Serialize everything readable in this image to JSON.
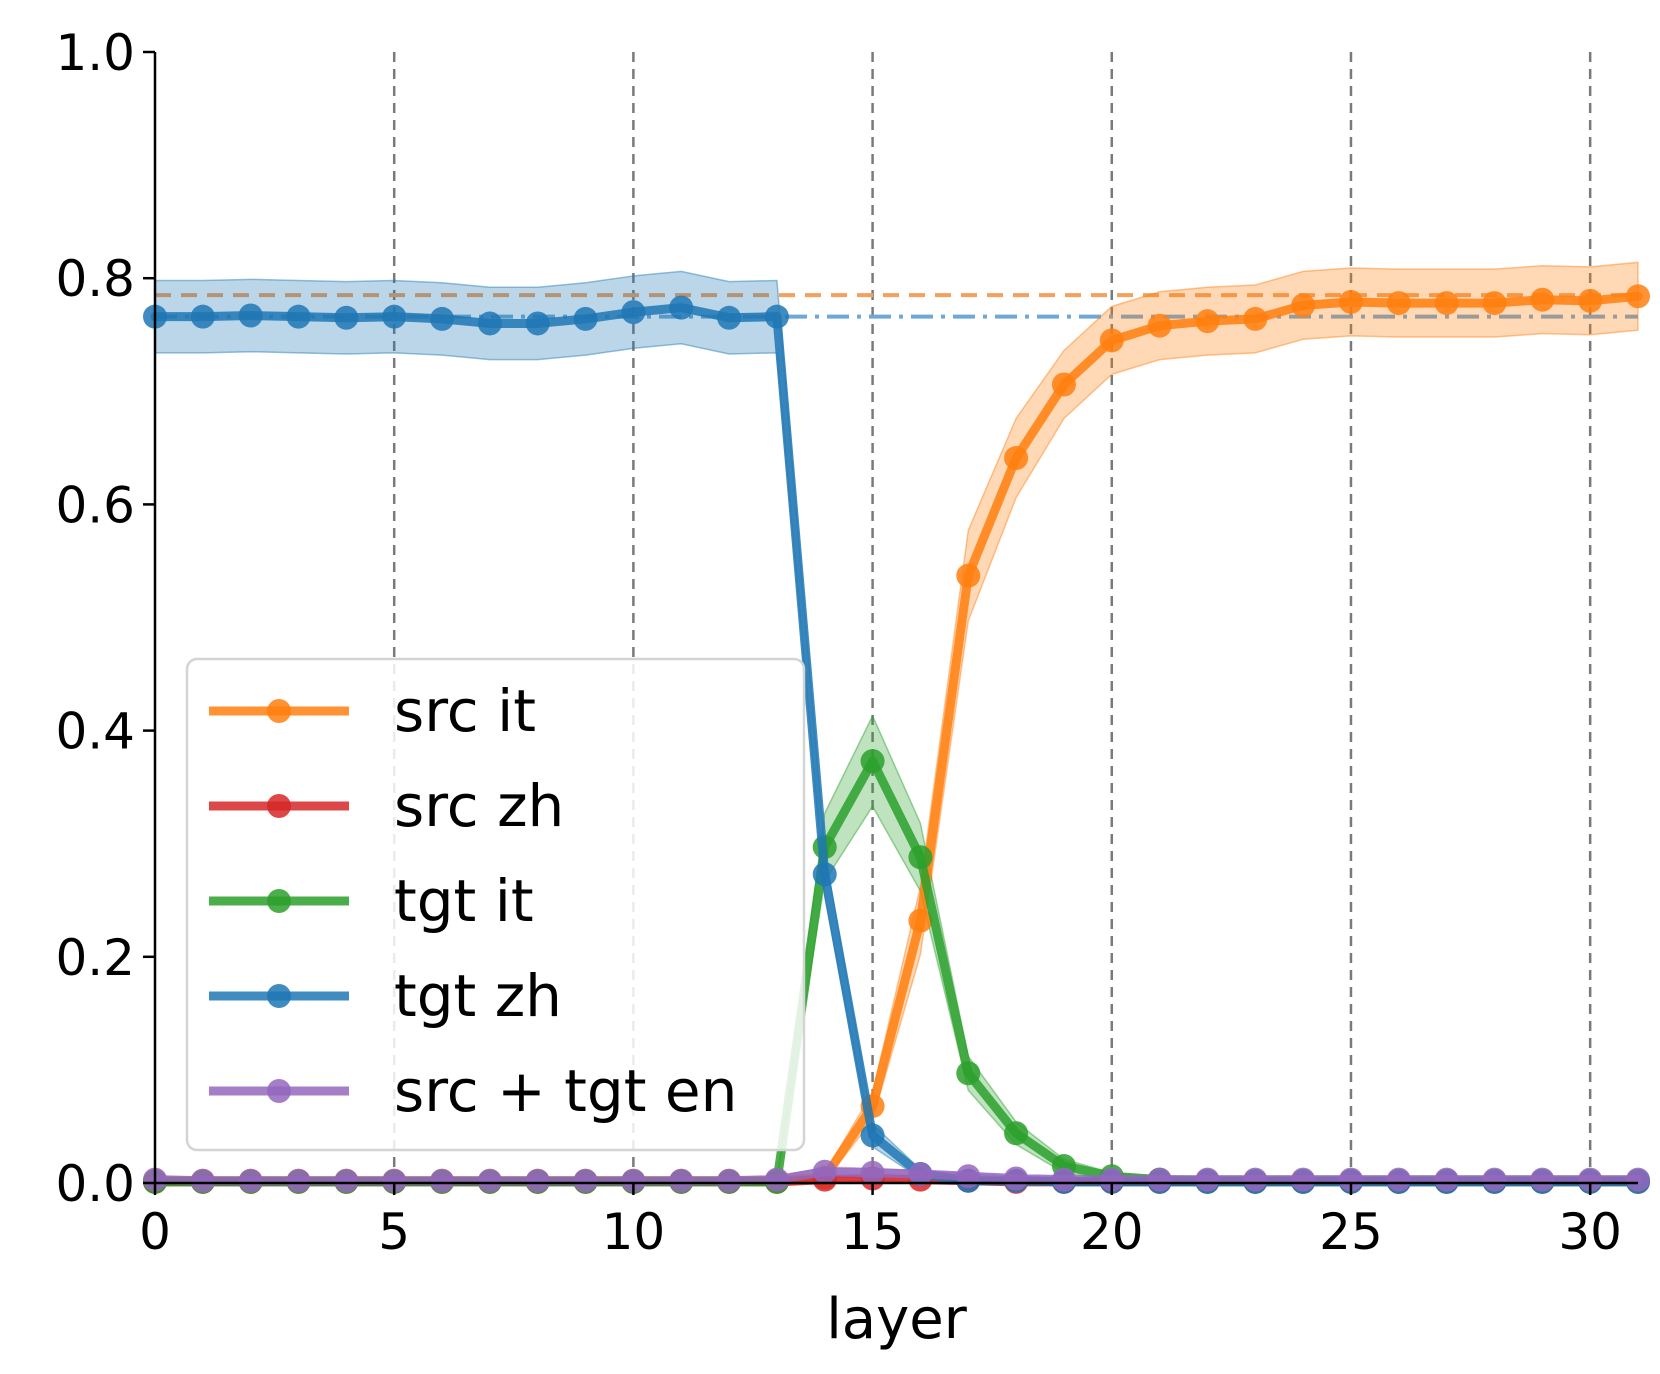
{
  "chart_data": {
    "type": "line",
    "xlabel": "layer",
    "ylabel": "",
    "xlim": [
      0,
      31
    ],
    "ylim": [
      0,
      1.0
    ],
    "xticks": [
      0,
      5,
      10,
      15,
      20,
      25,
      30
    ],
    "yticks": [
      0.0,
      0.2,
      0.4,
      0.6,
      0.8,
      1.0
    ],
    "ytick_labels": [
      "0.0",
      "0.2",
      "0.4",
      "0.6",
      "0.8",
      "1.0"
    ],
    "vlines": [
      5,
      10,
      15,
      20,
      25,
      30
    ],
    "legend_position": "lower-left",
    "reference_lines": [
      {
        "name": "src it baseline",
        "value": 0.785,
        "style": "dashed",
        "color": "#f4a15d"
      },
      {
        "name": "tgt zh baseline",
        "value": 0.766,
        "style": "dashdot",
        "color": "#6fa8d6"
      }
    ],
    "x": [
      0,
      1,
      2,
      3,
      4,
      5,
      6,
      7,
      8,
      9,
      10,
      11,
      12,
      13,
      14,
      15,
      16,
      17,
      18,
      19,
      20,
      21,
      22,
      23,
      24,
      25,
      26,
      27,
      28,
      29,
      30,
      31
    ],
    "series": [
      {
        "name": "src it",
        "color": "#ff7f0e",
        "values": [
          0.002,
          0.002,
          0.002,
          0.002,
          0.002,
          0.002,
          0.002,
          0.002,
          0.002,
          0.002,
          0.002,
          0.002,
          0.002,
          0.002,
          0.005,
          0.068,
          0.232,
          0.537,
          0.641,
          0.706,
          0.745,
          0.758,
          0.762,
          0.764,
          0.776,
          0.779,
          0.778,
          0.778,
          0.778,
          0.781,
          0.78,
          0.784
        ],
        "band": [
          0.002,
          0.002,
          0.002,
          0.002,
          0.002,
          0.002,
          0.002,
          0.002,
          0.002,
          0.002,
          0.002,
          0.002,
          0.002,
          0.002,
          0.004,
          0.012,
          0.03,
          0.04,
          0.035,
          0.03,
          0.03,
          0.03,
          0.03,
          0.03,
          0.03,
          0.03,
          0.03,
          0.03,
          0.03,
          0.03,
          0.03,
          0.03
        ]
      },
      {
        "name": "src zh",
        "color": "#d62728",
        "values": [
          0.001,
          0.001,
          0.001,
          0.001,
          0.001,
          0.001,
          0.001,
          0.001,
          0.001,
          0.001,
          0.001,
          0.001,
          0.001,
          0.001,
          0.003,
          0.004,
          0.003,
          0.002,
          0.001,
          0.001,
          0.001,
          0.001,
          0.001,
          0.001,
          0.001,
          0.001,
          0.001,
          0.001,
          0.001,
          0.001,
          0.001,
          0.001
        ],
        "band": [
          0.001,
          0.001,
          0.001,
          0.001,
          0.001,
          0.001,
          0.001,
          0.001,
          0.001,
          0.001,
          0.001,
          0.001,
          0.001,
          0.001,
          0.002,
          0.002,
          0.002,
          0.001,
          0.001,
          0.001,
          0.001,
          0.001,
          0.001,
          0.001,
          0.001,
          0.001,
          0.001,
          0.001,
          0.001,
          0.001,
          0.001,
          0.001
        ]
      },
      {
        "name": "tgt it",
        "color": "#2ca02c",
        "values": [
          0.001,
          0.001,
          0.001,
          0.001,
          0.001,
          0.001,
          0.001,
          0.001,
          0.001,
          0.001,
          0.001,
          0.001,
          0.001,
          0.001,
          0.297,
          0.373,
          0.288,
          0.097,
          0.044,
          0.015,
          0.006,
          0.003,
          0.002,
          0.002,
          0.002,
          0.002,
          0.002,
          0.002,
          0.002,
          0.002,
          0.002,
          0.002
        ],
        "band": [
          0.001,
          0.001,
          0.001,
          0.001,
          0.001,
          0.001,
          0.001,
          0.001,
          0.001,
          0.001,
          0.001,
          0.001,
          0.001,
          0.001,
          0.03,
          0.04,
          0.03,
          0.015,
          0.01,
          0.006,
          0.003,
          0.002,
          0.001,
          0.001,
          0.001,
          0.001,
          0.001,
          0.001,
          0.001,
          0.001,
          0.001,
          0.001
        ]
      },
      {
        "name": "tgt zh",
        "color": "#1f77b4",
        "values": [
          0.766,
          0.766,
          0.767,
          0.766,
          0.765,
          0.766,
          0.764,
          0.76,
          0.76,
          0.764,
          0.77,
          0.774,
          0.765,
          0.766,
          0.273,
          0.042,
          0.008,
          0.002,
          0.002,
          0.001,
          0.001,
          0.001,
          0.001,
          0.001,
          0.001,
          0.001,
          0.001,
          0.001,
          0.001,
          0.001,
          0.001,
          0.001
        ],
        "band": [
          0.032,
          0.032,
          0.032,
          0.032,
          0.032,
          0.032,
          0.032,
          0.032,
          0.032,
          0.032,
          0.032,
          0.032,
          0.032,
          0.032,
          0.02,
          0.01,
          0.004,
          0.001,
          0.001,
          0.001,
          0.001,
          0.001,
          0.001,
          0.001,
          0.001,
          0.001,
          0.001,
          0.001,
          0.001,
          0.001,
          0.001,
          0.001
        ]
      },
      {
        "name": "src + tgt en",
        "color": "#9467bd",
        "values": [
          0.003,
          0.002,
          0.002,
          0.002,
          0.002,
          0.002,
          0.002,
          0.002,
          0.002,
          0.002,
          0.002,
          0.002,
          0.002,
          0.003,
          0.01,
          0.009,
          0.008,
          0.006,
          0.004,
          0.003,
          0.003,
          0.003,
          0.003,
          0.003,
          0.003,
          0.003,
          0.003,
          0.003,
          0.003,
          0.003,
          0.003,
          0.003
        ],
        "band": [
          0.002,
          0.002,
          0.002,
          0.002,
          0.002,
          0.002,
          0.002,
          0.002,
          0.002,
          0.002,
          0.002,
          0.002,
          0.002,
          0.002,
          0.004,
          0.004,
          0.003,
          0.002,
          0.002,
          0.002,
          0.002,
          0.002,
          0.002,
          0.002,
          0.002,
          0.002,
          0.002,
          0.002,
          0.002,
          0.002,
          0.002,
          0.002
        ]
      }
    ]
  }
}
